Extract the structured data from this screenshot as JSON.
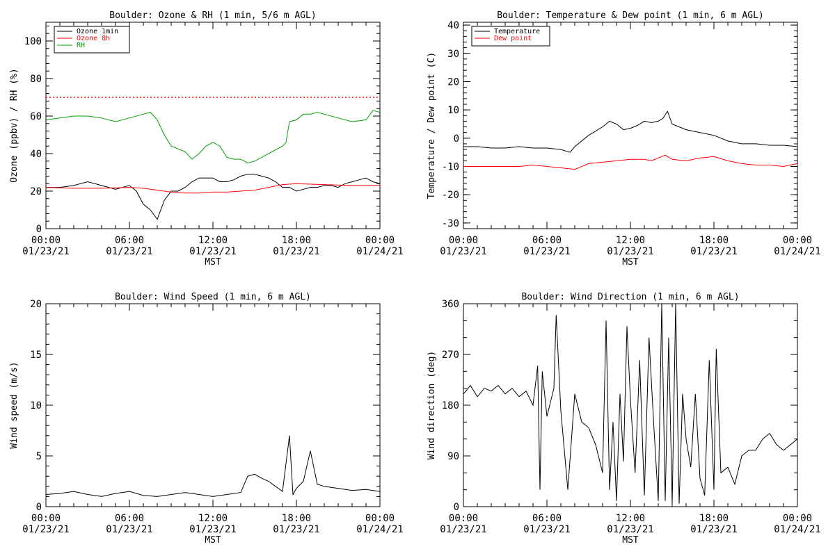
{
  "time_axis": {
    "ticks": [
      {
        "time": "00:00",
        "date": "01/23/21"
      },
      {
        "time": "06:00",
        "date": "01/23/21"
      },
      {
        "time": "12:00",
        "date": "01/23/21"
      },
      {
        "time": "18:00",
        "date": "01/23/21"
      },
      {
        "time": "00:00",
        "date": "01/24/21"
      }
    ],
    "label": "MST",
    "start": "2021-01-23 00:00",
    "end": "2021-01-24 00:00"
  },
  "chart_data": [
    {
      "type": "line",
      "title": "Boulder: Ozone & RH (1 min, 5/6 m AGL)",
      "ylabel": "Ozone (ppbv) / RH (%)",
      "xlabel": "MST",
      "ylim": [
        0,
        110
      ],
      "yticks": [
        0,
        20,
        40,
        60,
        80,
        100
      ],
      "legend": "top-left",
      "reference_line": {
        "y": 70,
        "color": "#ff0000",
        "style": "dotted"
      },
      "series": [
        {
          "name": "Ozone 1min",
          "color": "#000000",
          "x": [
            "00:00",
            "01:00",
            "02:00",
            "03:00",
            "04:00",
            "05:00",
            "06:00",
            "06:30",
            "07:00",
            "07:30",
            "08:00",
            "08:30",
            "09:00",
            "09:30",
            "10:00",
            "10:30",
            "11:00",
            "11:30",
            "12:00",
            "12:30",
            "13:00",
            "13:30",
            "14:00",
            "14:30",
            "15:00",
            "15:30",
            "16:00",
            "16:30",
            "17:00",
            "17:30",
            "18:00",
            "18:30",
            "19:00",
            "19:30",
            "20:00",
            "20:30",
            "21:00",
            "21:30",
            "22:00",
            "22:30",
            "23:00",
            "23:30",
            "24:00"
          ],
          "values": [
            22,
            22,
            23,
            25,
            23,
            21,
            23,
            20,
            13,
            10,
            5,
            15,
            20,
            20,
            22,
            25,
            27,
            27,
            27,
            25,
            25,
            26,
            28,
            29,
            29,
            28,
            27,
            25,
            22,
            22,
            20,
            21,
            22,
            22,
            23,
            23,
            22,
            24,
            25,
            26,
            27,
            25,
            24
          ]
        },
        {
          "name": "Ozone 8h",
          "color": "#ff0000",
          "x": [
            "00:00",
            "02:00",
            "04:00",
            "06:00",
            "07:00",
            "08:00",
            "09:00",
            "10:00",
            "11:00",
            "12:00",
            "13:00",
            "14:00",
            "15:00",
            "16:00",
            "17:00",
            "18:00",
            "20:00",
            "22:00",
            "24:00"
          ],
          "values": [
            22,
            21.5,
            21.5,
            22,
            21.5,
            20.5,
            19.5,
            19,
            19,
            19.5,
            19.5,
            20,
            20.5,
            22,
            23.5,
            24,
            23.5,
            23,
            23
          ]
        },
        {
          "name": "RH",
          "color": "#00a000",
          "x": [
            "00:00",
            "01:00",
            "02:00",
            "03:00",
            "04:00",
            "05:00",
            "06:00",
            "07:00",
            "07:30",
            "08:00",
            "08:30",
            "09:00",
            "10:00",
            "10:30",
            "11:00",
            "11:30",
            "12:00",
            "12:30",
            "13:00",
            "13:30",
            "14:00",
            "14:30",
            "15:00",
            "15:30",
            "16:00",
            "16:30",
            "17:00",
            "17:15",
            "17:30",
            "18:00",
            "18:30",
            "19:00",
            "19:30",
            "20:00",
            "21:00",
            "22:00",
            "23:00",
            "23:30",
            "24:00"
          ],
          "values": [
            58,
            59,
            60,
            60,
            59,
            57,
            59,
            61,
            62,
            58,
            50,
            44,
            41,
            37,
            40,
            44,
            46,
            44,
            38,
            37,
            37,
            35,
            36,
            38,
            40,
            42,
            44,
            46,
            57,
            58,
            61,
            61,
            62,
            61,
            59,
            57,
            58,
            63,
            62
          ]
        }
      ]
    },
    {
      "type": "line",
      "title": "Boulder: Temperature & Dew point (1 min, 6 m AGL)",
      "ylabel": "Temperature / Dew point (C)",
      "xlabel": "MST",
      "ylim": [
        -32,
        41
      ],
      "yticks": [
        -30,
        -20,
        -10,
        0,
        10,
        20,
        30,
        40
      ],
      "legend": "top-left",
      "series": [
        {
          "name": "Temperature",
          "color": "#000000",
          "x": [
            "00:00",
            "01:00",
            "02:00",
            "03:00",
            "04:00",
            "05:00",
            "06:00",
            "07:00",
            "07:40",
            "08:00",
            "09:00",
            "10:00",
            "10:30",
            "11:00",
            "11:30",
            "12:00",
            "12:30",
            "13:00",
            "13:30",
            "14:00",
            "14:20",
            "14:40",
            "15:00",
            "16:00",
            "17:00",
            "18:00",
            "19:00",
            "20:00",
            "21:00",
            "22:00",
            "23:00",
            "24:00"
          ],
          "values": [
            -3,
            -3,
            -3.5,
            -3.5,
            -3,
            -3.5,
            -3.5,
            -4,
            -5,
            -3,
            1,
            4,
            6,
            5,
            3,
            3.5,
            4.5,
            6,
            5.5,
            6,
            7,
            9.5,
            5,
            3,
            2,
            1,
            -1,
            -2,
            -2,
            -2.5,
            -2.5,
            -3
          ]
        },
        {
          "name": "Dew point",
          "color": "#ff0000",
          "x": [
            "00:00",
            "01:00",
            "02:00",
            "03:00",
            "04:00",
            "05:00",
            "06:00",
            "07:00",
            "08:00",
            "09:00",
            "10:00",
            "11:00",
            "12:00",
            "13:00",
            "13:30",
            "14:00",
            "14:30",
            "15:00",
            "16:00",
            "17:00",
            "18:00",
            "19:00",
            "20:00",
            "21:00",
            "22:00",
            "23:00",
            "24:00"
          ],
          "values": [
            -10,
            -10,
            -10,
            -10,
            -10,
            -9.5,
            -10,
            -10.5,
            -11,
            -9,
            -8.5,
            -8,
            -7.5,
            -7.5,
            -8,
            -7,
            -6,
            -7.5,
            -8,
            -7,
            -6.5,
            -8,
            -9,
            -9.5,
            -9.5,
            -10,
            -9
          ]
        }
      ]
    },
    {
      "type": "line",
      "title": "Boulder: Wind Speed (1 min, 6 m AGL)",
      "ylabel": "Wind speed (m/s)",
      "xlabel": "MST",
      "ylim": [
        0,
        20
      ],
      "yticks": [
        0,
        5,
        10,
        15,
        20
      ],
      "series": [
        {
          "color": "#000000",
          "x": [
            "00:00",
            "01:00",
            "02:00",
            "03:00",
            "04:00",
            "05:00",
            "06:00",
            "07:00",
            "08:00",
            "09:00",
            "10:00",
            "11:00",
            "12:00",
            "13:00",
            "14:00",
            "14:30",
            "15:00",
            "15:30",
            "16:00",
            "16:30",
            "17:00",
            "17:30",
            "17:45",
            "18:00",
            "18:30",
            "19:00",
            "19:30",
            "20:00",
            "21:00",
            "22:00",
            "23:00",
            "24:00"
          ],
          "values": [
            1.2,
            1.3,
            1.5,
            1.2,
            1.0,
            1.3,
            1.5,
            1.1,
            1.0,
            1.2,
            1.4,
            1.2,
            1.0,
            1.2,
            1.4,
            3.0,
            3.2,
            2.8,
            2.5,
            2.0,
            1.5,
            7.0,
            1.2,
            1.8,
            2.5,
            5.5,
            2.2,
            2.0,
            1.8,
            1.6,
            1.7,
            1.5
          ]
        }
      ]
    },
    {
      "type": "line",
      "title": "Boulder: Wind Direction (1 min, 6 m AGL)",
      "ylabel": "Wind direction (deg)",
      "xlabel": "MST",
      "ylim": [
        0,
        360
      ],
      "yticks": [
        0,
        90,
        180,
        270,
        360
      ],
      "series": [
        {
          "color": "#000000",
          "x": [
            "00:00",
            "00:30",
            "01:00",
            "01:30",
            "02:00",
            "02:30",
            "03:00",
            "03:30",
            "04:00",
            "04:30",
            "05:00",
            "05:20",
            "05:30",
            "05:40",
            "06:00",
            "06:30",
            "06:40",
            "07:00",
            "07:30",
            "08:00",
            "08:30",
            "09:00",
            "09:30",
            "10:00",
            "10:15",
            "10:30",
            "10:45",
            "11:00",
            "11:15",
            "11:30",
            "11:45",
            "12:00",
            "12:20",
            "12:40",
            "13:00",
            "13:20",
            "13:40",
            "14:00",
            "14:15",
            "14:30",
            "14:45",
            "15:00",
            "15:15",
            "15:30",
            "15:45",
            "16:00",
            "16:20",
            "16:40",
            "17:00",
            "17:20",
            "17:40",
            "18:00",
            "18:10",
            "18:30",
            "19:00",
            "19:30",
            "20:00",
            "20:30",
            "21:00",
            "21:30",
            "22:00",
            "22:30",
            "23:00",
            "23:30",
            "24:00"
          ],
          "values": [
            200,
            215,
            195,
            210,
            205,
            215,
            200,
            210,
            195,
            205,
            180,
            250,
            30,
            240,
            160,
            210,
            340,
            170,
            30,
            200,
            150,
            140,
            110,
            60,
            330,
            30,
            150,
            10,
            200,
            80,
            320,
            190,
            60,
            260,
            20,
            300,
            150,
            10,
            360,
            10,
            300,
            5,
            360,
            5,
            200,
            120,
            70,
            200,
            50,
            20,
            260,
            30,
            280,
            60,
            70,
            40,
            90,
            100,
            100,
            120,
            130,
            110,
            100,
            110,
            120
          ]
        }
      ]
    }
  ]
}
